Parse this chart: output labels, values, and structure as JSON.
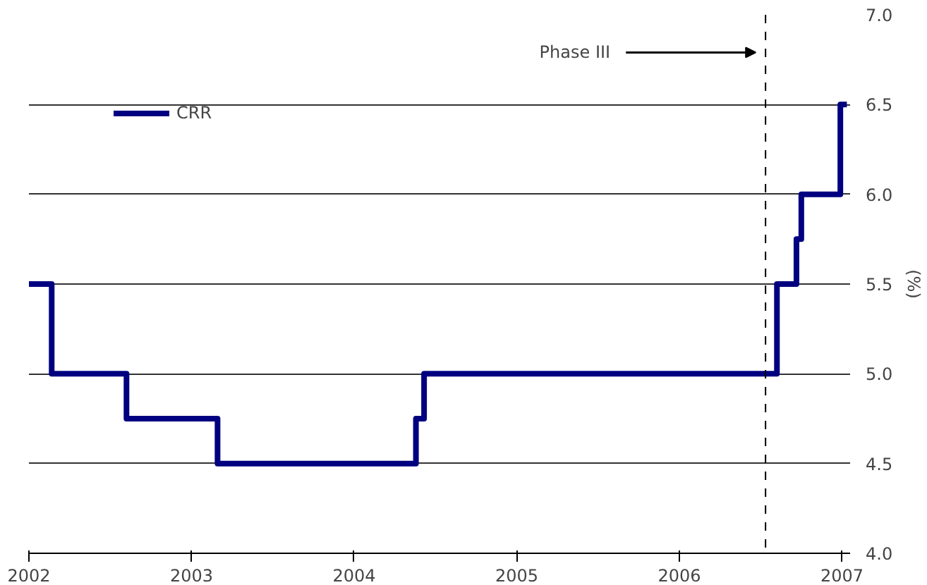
{
  "chart_data": {
    "type": "step",
    "ylabel": "(%)",
    "x": [
      2002,
      2002.14,
      2002.6,
      2003.16,
      2004.38,
      2004.43,
      2006.53,
      2006.6,
      2006.72,
      2006.75,
      2006.99,
      2007.03
    ],
    "series": [
      {
        "name": "CRR",
        "color": "#000080",
        "values": [
          5.5,
          5.0,
          4.75,
          4.5,
          4.75,
          5.0,
          5.0,
          5.5,
          5.75,
          6.0,
          6.5,
          6.5
        ]
      }
    ],
    "xlim": [
      2002,
      2007.05
    ],
    "xticks": [
      2002,
      2003,
      2004,
      2005,
      2006,
      2007
    ],
    "ylim": [
      4.0,
      7.0
    ],
    "yticks": [
      {
        "value": 4.0,
        "label": "4.0"
      },
      {
        "value": 4.5,
        "label": "4.5"
      },
      {
        "value": 5.0,
        "label": "5.0"
      },
      {
        "value": 5.5,
        "label": "5.5"
      },
      {
        "value": 6.0,
        "label": "6.0"
      },
      {
        "value": 6.5,
        "label": "6.5"
      },
      {
        "value": 7.0,
        "label": "7.0"
      }
    ],
    "ref_lines": [
      {
        "axis": "x",
        "value": 2006.53,
        "color": "#000000",
        "line_style": "dashed"
      }
    ],
    "annotations": [
      "Phase III"
    ],
    "grid": "y",
    "legend": "top left",
    "marker": "none",
    "line_style": "solid"
  }
}
